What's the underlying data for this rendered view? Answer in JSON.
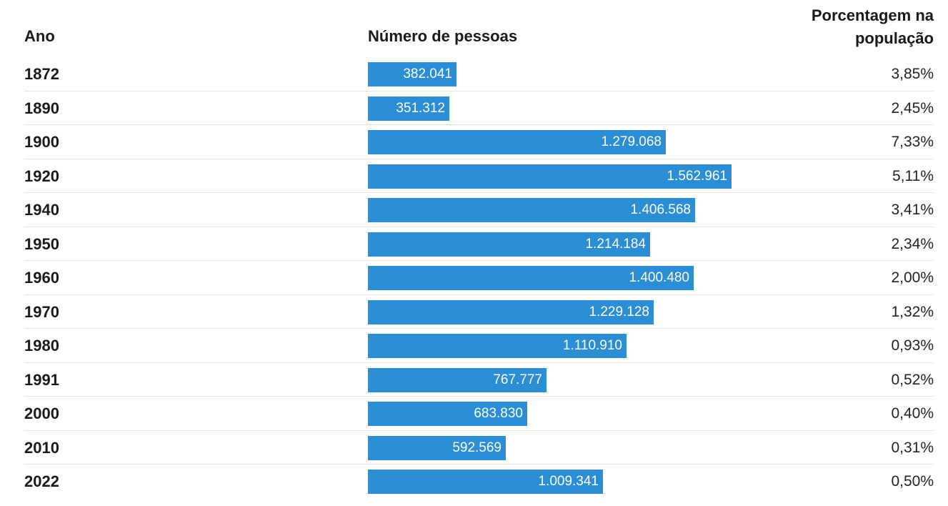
{
  "header": {
    "col_year": "Ano",
    "col_count": "Número de pessoas",
    "col_pct_line1": "Porcentagem na",
    "col_pct_line2": "população"
  },
  "colors": {
    "bar": "#2b8ed4",
    "bar_label": "#ffffff",
    "divider": "#e3e3e3"
  },
  "chart_data": {
    "type": "bar",
    "orientation": "horizontal",
    "xlim": [
      0,
      1562961
    ],
    "rows": [
      {
        "year": "1872",
        "value": 382041,
        "value_label": "382.041",
        "pct": "3,85%"
      },
      {
        "year": "1890",
        "value": 351312,
        "value_label": "351.312",
        "pct": "2,45%"
      },
      {
        "year": "1900",
        "value": 1279068,
        "value_label": "1.279.068",
        "pct": "7,33%"
      },
      {
        "year": "1920",
        "value": 1562961,
        "value_label": "1.562.961",
        "pct": "5,11%"
      },
      {
        "year": "1940",
        "value": 1406568,
        "value_label": "1.406.568",
        "pct": "3,41%"
      },
      {
        "year": "1950",
        "value": 1214184,
        "value_label": "1.214.184",
        "pct": "2,34%"
      },
      {
        "year": "1960",
        "value": 1400480,
        "value_label": "1.400.480",
        "pct": "2,00%"
      },
      {
        "year": "1970",
        "value": 1229128,
        "value_label": "1.229.128",
        "pct": "1,32%"
      },
      {
        "year": "1980",
        "value": 1110910,
        "value_label": "1.110.910",
        "pct": "0,93%"
      },
      {
        "year": "1991",
        "value": 767777,
        "value_label": "767.777",
        "pct": "0,52%"
      },
      {
        "year": "2000",
        "value": 683830,
        "value_label": "683.830",
        "pct": "0,40%"
      },
      {
        "year": "2010",
        "value": 592569,
        "value_label": "592.569",
        "pct": "0,31%"
      },
      {
        "year": "2022",
        "value": 1009341,
        "value_label": "1.009.341",
        "pct": "0,50%"
      }
    ]
  }
}
